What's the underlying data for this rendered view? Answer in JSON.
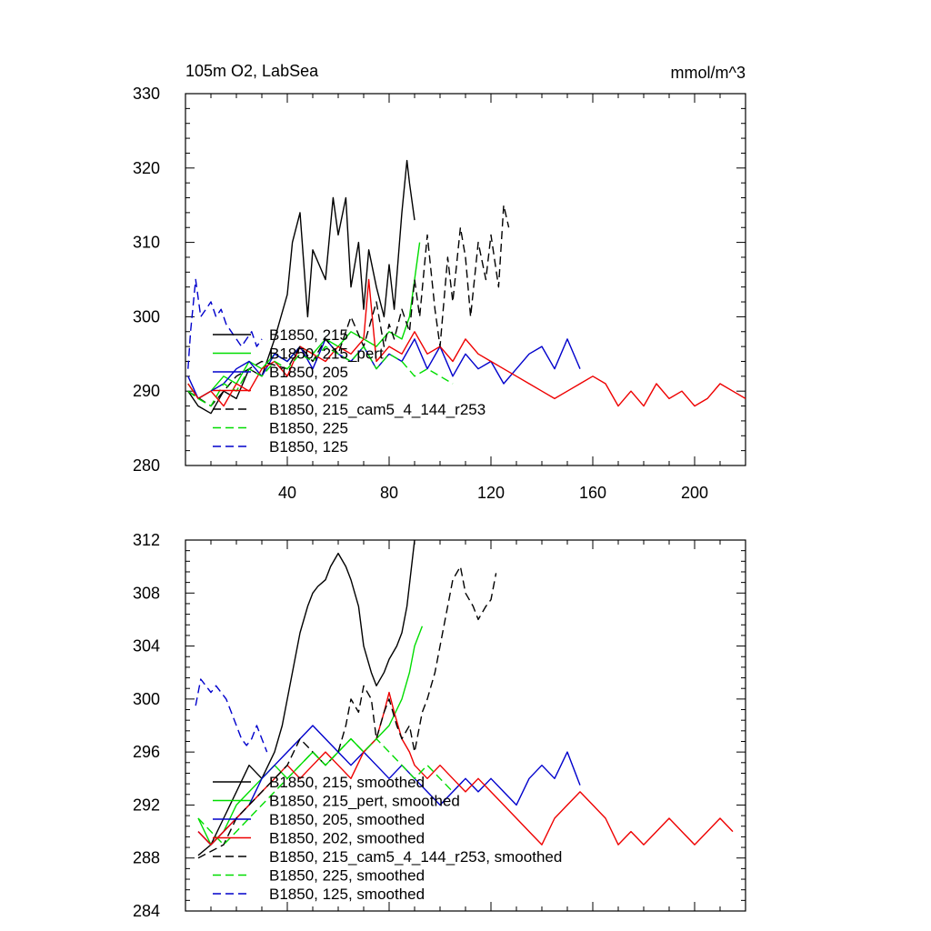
{
  "chart_data": [
    {
      "type": "line",
      "title": "105m O2, LabSea",
      "units": "mmol/m^3",
      "xlim": [
        0,
        220
      ],
      "ylim": [
        280,
        330
      ],
      "xticks": [
        40,
        80,
        120,
        160,
        200
      ],
      "yticks": [
        280,
        290,
        300,
        310,
        320,
        330
      ],
      "xtick_labels": [
        "40",
        "80",
        "120",
        "160",
        "200"
      ],
      "ytick_labels": [
        "280",
        "290",
        "300",
        "310",
        "320",
        "330"
      ],
      "legend_position": "bottom-left",
      "series": [
        {
          "name": "B1850, 215",
          "color": "#000000",
          "dash": "solid",
          "x": [
            1,
            5,
            10,
            15,
            20,
            25,
            30,
            35,
            40,
            42,
            45,
            48,
            50,
            55,
            58,
            60,
            63,
            65,
            68,
            70,
            72,
            75,
            78,
            80,
            82,
            85,
            87,
            88,
            90
          ],
          "y": [
            290,
            288,
            287,
            290,
            289,
            293,
            292,
            297,
            303,
            310,
            314,
            300,
            309,
            305,
            316,
            311,
            316,
            304,
            310,
            301,
            309,
            304,
            300,
            307,
            301,
            314,
            321,
            318,
            313
          ]
        },
        {
          "name": "B1850, 215_pert",
          "color": "#00dd00",
          "dash": "solid",
          "x": [
            1,
            5,
            10,
            15,
            20,
            25,
            30,
            35,
            40,
            45,
            50,
            55,
            60,
            65,
            70,
            75,
            80,
            85,
            88,
            90,
            92
          ],
          "y": [
            291,
            289,
            290,
            292,
            291,
            294,
            293,
            295,
            294,
            296,
            295,
            297,
            296,
            298,
            297,
            296,
            298,
            297,
            300,
            305,
            310
          ]
        },
        {
          "name": "B1850, 205",
          "color": "#0000cc",
          "dash": "solid",
          "x": [
            1,
            5,
            10,
            15,
            20,
            25,
            30,
            35,
            40,
            45,
            50,
            55,
            60,
            65,
            70,
            75,
            80,
            85,
            90,
            95,
            100,
            105,
            110,
            115,
            120,
            125,
            130,
            135,
            140,
            145,
            150,
            155
          ],
          "y": [
            292,
            289,
            290,
            291,
            293,
            294,
            292,
            295,
            294,
            296,
            293,
            297,
            295,
            294,
            296,
            293,
            295,
            294,
            297,
            293,
            296,
            292,
            295,
            293,
            294,
            291,
            293,
            295,
            296,
            293,
            297,
            293
          ]
        },
        {
          "name": "B1850, 202",
          "color": "#ee0000",
          "dash": "solid",
          "x": [
            1,
            5,
            10,
            15,
            20,
            25,
            30,
            35,
            40,
            45,
            50,
            55,
            60,
            65,
            70,
            72,
            75,
            80,
            85,
            90,
            95,
            100,
            105,
            110,
            115,
            120,
            125,
            130,
            135,
            140,
            145,
            150,
            155,
            160,
            165,
            170,
            175,
            180,
            185,
            190,
            195,
            200,
            205,
            210,
            215,
            220
          ],
          "y": [
            291,
            289,
            290,
            288,
            291,
            290,
            293,
            294,
            292,
            296,
            295,
            294,
            296,
            295,
            297,
            305,
            294,
            296,
            295,
            298,
            295,
            296,
            294,
            297,
            295,
            294,
            293,
            292,
            291,
            290,
            289,
            290,
            291,
            292,
            291,
            288,
            290,
            288,
            291,
            289,
            290,
            288,
            289,
            291,
            290,
            289
          ]
        },
        {
          "name": "B1850, 215_cam5_4_144_r253",
          "color": "#000000",
          "dash": "dash",
          "x": [
            1,
            10,
            20,
            30,
            40,
            45,
            50,
            55,
            60,
            65,
            70,
            75,
            78,
            80,
            82,
            85,
            88,
            90,
            92,
            95,
            98,
            100,
            103,
            105,
            108,
            110,
            112,
            115,
            118,
            120,
            123,
            125,
            127
          ],
          "y": [
            290,
            288,
            292,
            294,
            293,
            296,
            294,
            297,
            295,
            300,
            296,
            302,
            296,
            299,
            297,
            301,
            298,
            305,
            300,
            311,
            301,
            296,
            308,
            302,
            312,
            308,
            300,
            310,
            305,
            311,
            304,
            315,
            312
          ]
        },
        {
          "name": "B1850, 225",
          "color": "#00dd00",
          "dash": "dash",
          "x": [
            1,
            5,
            10,
            15,
            20,
            25,
            30,
            35,
            40,
            45,
            50,
            55,
            60,
            65,
            70,
            75,
            80,
            85,
            90,
            95,
            100,
            105
          ],
          "y": [
            290,
            289,
            288,
            291,
            290,
            293,
            292,
            294,
            293,
            295,
            294,
            296,
            295,
            294,
            296,
            293,
            295,
            294,
            292,
            293,
            292,
            291
          ]
        },
        {
          "name": "B1850, 125",
          "color": "#0000cc",
          "dash": "dash",
          "x": [
            1,
            2,
            4,
            6,
            8,
            10,
            12,
            14,
            16,
            18,
            20,
            22,
            24,
            26,
            28,
            30
          ],
          "y": [
            293,
            298,
            305,
            300,
            301,
            302,
            300,
            301,
            299,
            298,
            297,
            296,
            297,
            298,
            296,
            297
          ]
        }
      ]
    },
    {
      "type": "line",
      "title": "",
      "units": "",
      "xlim": [
        0,
        220
      ],
      "ylim": [
        284,
        312
      ],
      "xticks": [
        40,
        80,
        120,
        160,
        200
      ],
      "yticks": [
        284,
        288,
        292,
        296,
        300,
        304,
        308,
        312
      ],
      "ytick_labels": [
        "284",
        "288",
        "292",
        "296",
        "300",
        "304",
        "308",
        "312"
      ],
      "legend_position": "bottom-left",
      "series": [
        {
          "name": "B1850, 215, smoothed",
          "color": "#000000",
          "dash": "solid",
          "x": [
            5,
            10,
            15,
            20,
            25,
            30,
            35,
            38,
            40,
            43,
            45,
            48,
            50,
            52,
            55,
            57,
            60,
            63,
            65,
            68,
            70,
            73,
            75,
            78,
            80,
            83,
            85,
            87,
            90
          ],
          "y": [
            288.2,
            289,
            291,
            293,
            295,
            294,
            296,
            298,
            300,
            303,
            305,
            307,
            308,
            308.5,
            309,
            310,
            311,
            310,
            309,
            307,
            304,
            302,
            301,
            302,
            303,
            304,
            305,
            307,
            312
          ]
        },
        {
          "name": "B1850, 215_pert, smoothed",
          "color": "#00dd00",
          "dash": "solid",
          "x": [
            5,
            10,
            15,
            20,
            25,
            30,
            35,
            40,
            45,
            50,
            55,
            60,
            65,
            70,
            75,
            80,
            85,
            88,
            90,
            93
          ],
          "y": [
            291,
            289,
            290,
            292,
            293,
            294,
            295,
            294,
            295,
            296,
            295,
            296,
            297,
            296,
            297,
            298,
            300,
            302,
            304,
            305.5
          ]
        },
        {
          "name": "B1850, 205, smoothed",
          "color": "#0000cc",
          "dash": "solid",
          "x": [
            5,
            10,
            15,
            20,
            25,
            30,
            35,
            40,
            45,
            50,
            55,
            60,
            65,
            70,
            75,
            80,
            85,
            90,
            95,
            100,
            105,
            110,
            115,
            120,
            125,
            130,
            135,
            140,
            145,
            150,
            155
          ],
          "y": [
            290,
            289,
            290,
            291,
            292,
            294,
            295,
            296,
            297,
            298,
            297,
            296,
            295,
            296,
            295,
            294,
            295,
            294,
            293,
            292,
            293,
            294,
            293,
            294,
            293,
            292,
            294,
            295,
            294,
            296,
            293.5
          ]
        },
        {
          "name": "B1850, 202, smoothed",
          "color": "#ee0000",
          "dash": "solid",
          "x": [
            5,
            10,
            15,
            20,
            25,
            30,
            35,
            40,
            45,
            50,
            55,
            60,
            65,
            70,
            75,
            78,
            80,
            82,
            85,
            88,
            90,
            95,
            100,
            105,
            110,
            115,
            120,
            125,
            130,
            135,
            140,
            145,
            150,
            155,
            160,
            165,
            170,
            175,
            180,
            185,
            190,
            195,
            200,
            205,
            210,
            215
          ],
          "y": [
            290,
            289,
            290,
            291,
            292,
            293,
            294,
            295,
            294,
            295,
            296,
            295,
            294,
            296,
            297,
            299,
            300.5,
            299,
            297,
            296,
            295,
            294,
            295,
            294,
            293,
            294,
            293,
            292,
            291,
            290,
            289,
            291,
            292,
            293,
            292,
            291,
            289,
            290,
            289,
            290,
            291,
            290,
            289,
            290,
            291,
            290
          ]
        },
        {
          "name": "B1850, 215_cam5_4_144_r253, smoothed",
          "color": "#000000",
          "dash": "dash",
          "x": [
            5,
            10,
            15,
            20,
            25,
            30,
            35,
            40,
            45,
            50,
            55,
            60,
            63,
            65,
            68,
            70,
            73,
            75,
            78,
            80,
            83,
            85,
            88,
            90,
            93,
            95,
            98,
            100,
            103,
            105,
            108,
            110,
            113,
            115,
            118,
            120,
            122
          ],
          "y": [
            288,
            288.5,
            289,
            291,
            292,
            293,
            294,
            295,
            297,
            296,
            295,
            296,
            298,
            300,
            299,
            301,
            300,
            297,
            299,
            300,
            298,
            297,
            298,
            296,
            299,
            300,
            302,
            304,
            307,
            309,
            310,
            308,
            307,
            306,
            307,
            307.5,
            309.5
          ]
        },
        {
          "name": "B1850, 225, smoothed",
          "color": "#00dd00",
          "dash": "dash",
          "x": [
            5,
            10,
            15,
            20,
            25,
            30,
            35,
            40,
            45,
            50,
            55,
            60,
            65,
            70,
            75,
            80,
            85,
            90,
            95,
            100,
            105
          ],
          "y": [
            291,
            290,
            289,
            290,
            291,
            292,
            293,
            294,
            295,
            296,
            295,
            296,
            297,
            296,
            297,
            296,
            295,
            294,
            295,
            294,
            293
          ]
        },
        {
          "name": "B1850, 125, smoothed",
          "color": "#0000cc",
          "dash": "dash",
          "x": [
            4,
            6,
            8,
            10,
            12,
            14,
            16,
            18,
            20,
            22,
            24,
            26,
            28,
            30,
            32
          ],
          "y": [
            299.5,
            301.5,
            301,
            300.5,
            301,
            300.5,
            300,
            299,
            298,
            297,
            296.5,
            297,
            298,
            297,
            296
          ]
        }
      ]
    }
  ]
}
